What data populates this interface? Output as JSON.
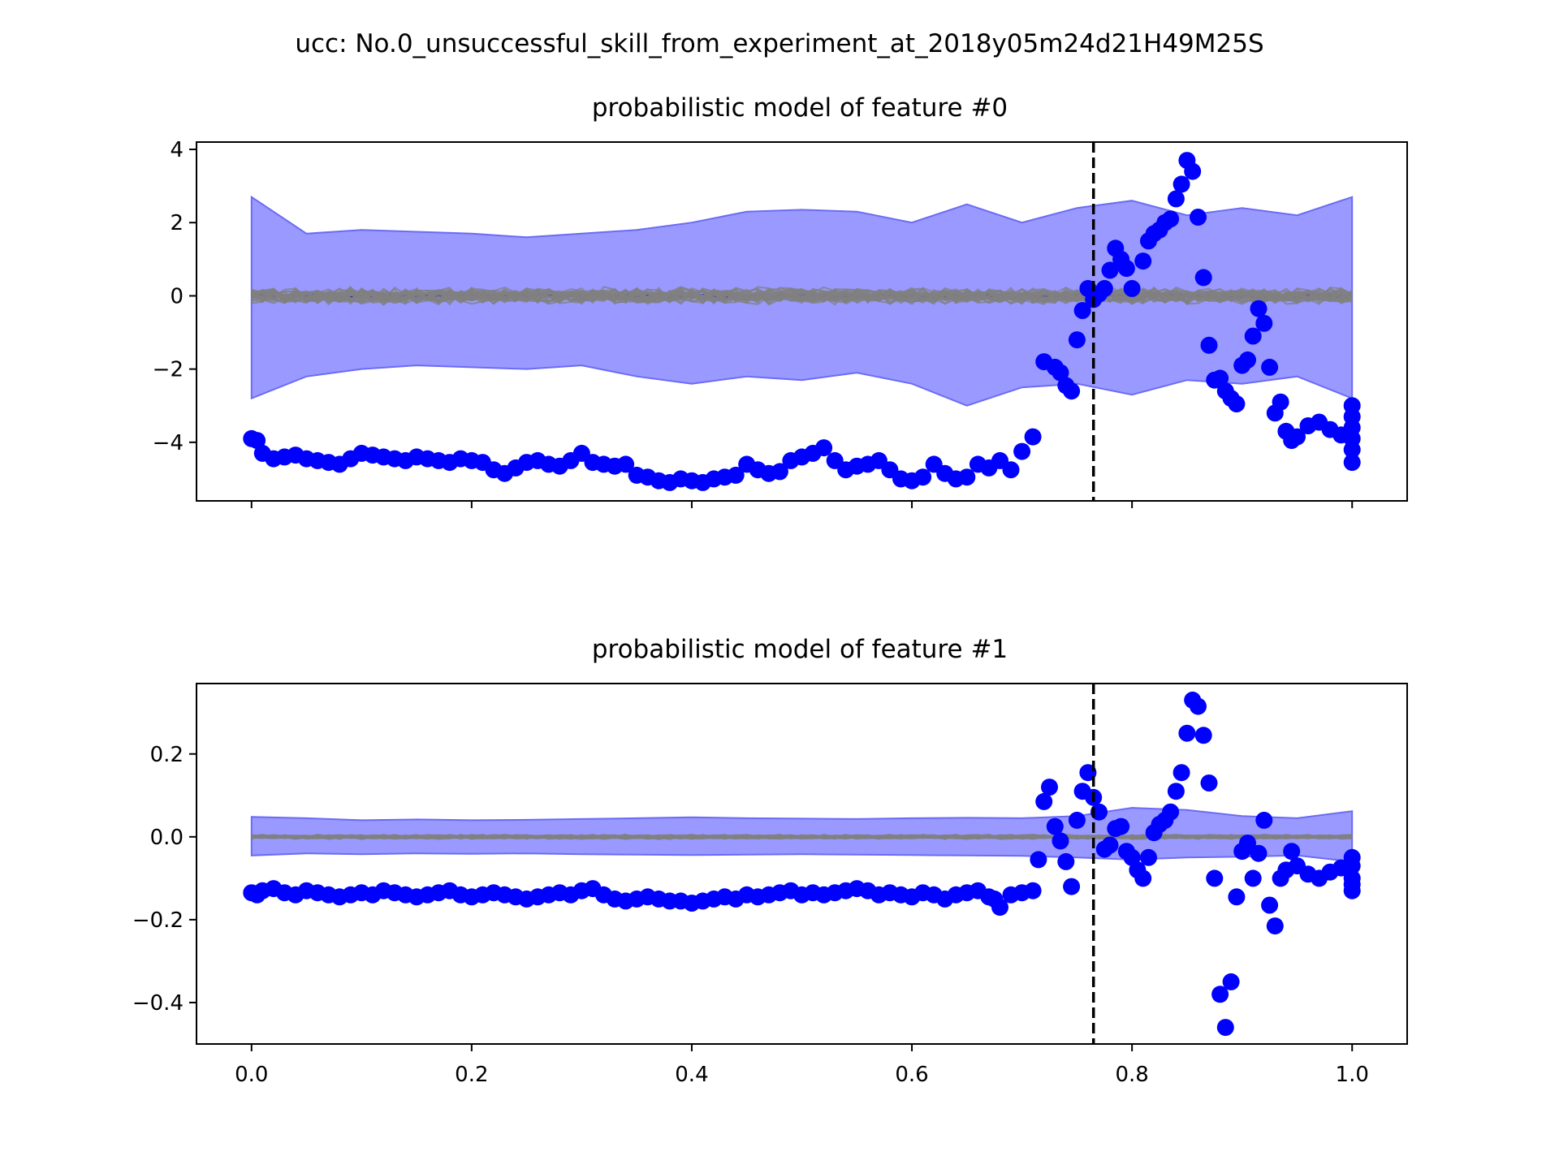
{
  "figure": {
    "suptitle": "ucc: No.0_unsuccessful_skill_from_experiment_at_2018y05m24d21H49M25S",
    "colors": {
      "observed": "#0000ff",
      "band": "#9999ff",
      "band_edge": "#6b6bf5",
      "samples": "#808080",
      "vline": "#000000"
    }
  },
  "chart_data": [
    {
      "type": "scatter",
      "title": "probabilistic model of feature #0",
      "xlabel": "",
      "ylabel": "",
      "xlim": [
        -0.05,
        1.05
      ],
      "ylim": [
        -5.6,
        4.2
      ],
      "xticks": [
        0.0,
        0.2,
        0.4,
        0.6,
        0.8,
        1.0
      ],
      "xtick_labels": [
        "",
        "",
        "",
        "",
        "",
        ""
      ],
      "yticks": [
        -4,
        -2,
        0,
        2,
        4
      ],
      "ytick_labels": [
        "−4",
        "−2",
        "0",
        "2",
        "4"
      ],
      "vline_x": 0.765,
      "band": {
        "x": [
          0.0,
          0.05,
          0.1,
          0.15,
          0.2,
          0.25,
          0.3,
          0.35,
          0.4,
          0.45,
          0.5,
          0.55,
          0.6,
          0.65,
          0.7,
          0.75,
          0.8,
          0.85,
          0.9,
          0.95,
          1.0
        ],
        "upper": [
          2.7,
          1.7,
          1.8,
          1.75,
          1.7,
          1.6,
          1.7,
          1.8,
          2.0,
          2.3,
          2.35,
          2.3,
          2.0,
          2.5,
          2.0,
          2.4,
          2.6,
          2.2,
          2.4,
          2.2,
          2.7
        ],
        "lower": [
          -2.8,
          -2.2,
          -2.0,
          -1.9,
          -1.95,
          -2.0,
          -1.9,
          -2.2,
          -2.4,
          -2.2,
          -2.3,
          -2.1,
          -2.4,
          -3.0,
          -2.5,
          -2.4,
          -2.7,
          -2.3,
          -2.4,
          -2.2,
          -2.8
        ]
      },
      "observed": {
        "x": [
          0.0,
          0.005,
          0.01,
          0.02,
          0.03,
          0.04,
          0.05,
          0.06,
          0.07,
          0.08,
          0.09,
          0.1,
          0.11,
          0.12,
          0.13,
          0.14,
          0.15,
          0.16,
          0.17,
          0.18,
          0.19,
          0.2,
          0.21,
          0.22,
          0.23,
          0.24,
          0.25,
          0.26,
          0.27,
          0.28,
          0.29,
          0.3,
          0.31,
          0.32,
          0.33,
          0.34,
          0.35,
          0.36,
          0.37,
          0.38,
          0.39,
          0.4,
          0.41,
          0.42,
          0.43,
          0.44,
          0.45,
          0.46,
          0.47,
          0.48,
          0.49,
          0.5,
          0.51,
          0.52,
          0.53,
          0.54,
          0.55,
          0.56,
          0.57,
          0.58,
          0.59,
          0.6,
          0.61,
          0.62,
          0.63,
          0.64,
          0.65,
          0.66,
          0.67,
          0.68,
          0.69,
          0.7,
          0.71,
          0.72,
          0.73,
          0.735,
          0.74,
          0.745,
          0.75,
          0.755,
          0.76,
          0.765,
          0.77,
          0.775,
          0.78,
          0.785,
          0.79,
          0.795,
          0.8,
          0.81,
          0.815,
          0.82,
          0.825,
          0.83,
          0.835,
          0.84,
          0.845,
          0.85,
          0.855,
          0.86,
          0.865,
          0.87,
          0.875,
          0.88,
          0.885,
          0.89,
          0.895,
          0.9,
          0.905,
          0.91,
          0.915,
          0.92,
          0.925,
          0.93,
          0.935,
          0.94,
          0.945,
          0.95,
          0.96,
          0.97,
          0.98,
          0.99,
          1.0,
          1.0,
          1.0,
          1.0,
          1.0,
          1.0
        ],
        "y": [
          -3.9,
          -3.95,
          -4.3,
          -4.45,
          -4.4,
          -4.35,
          -4.45,
          -4.5,
          -4.55,
          -4.6,
          -4.45,
          -4.3,
          -4.35,
          -4.4,
          -4.45,
          -4.5,
          -4.4,
          -4.45,
          -4.5,
          -4.55,
          -4.45,
          -4.5,
          -4.55,
          -4.75,
          -4.85,
          -4.7,
          -4.55,
          -4.5,
          -4.6,
          -4.65,
          -4.5,
          -4.3,
          -4.55,
          -4.6,
          -4.65,
          -4.6,
          -4.9,
          -4.95,
          -5.05,
          -5.1,
          -5.0,
          -5.05,
          -5.1,
          -5.0,
          -4.95,
          -4.9,
          -4.6,
          -4.75,
          -4.85,
          -4.8,
          -4.5,
          -4.4,
          -4.3,
          -4.15,
          -4.5,
          -4.75,
          -4.65,
          -4.6,
          -4.5,
          -4.75,
          -5.0,
          -5.05,
          -4.95,
          -4.6,
          -4.85,
          -5.0,
          -4.95,
          -4.6,
          -4.7,
          -4.5,
          -4.75,
          -4.25,
          -3.85,
          -1.8,
          -1.95,
          -2.1,
          -2.45,
          -2.6,
          -1.2,
          -0.4,
          0.2,
          -0.1,
          0.05,
          0.2,
          0.7,
          1.3,
          1.0,
          0.75,
          0.2,
          0.95,
          1.5,
          1.7,
          1.8,
          2.0,
          2.1,
          2.65,
          3.05,
          3.7,
          3.4,
          2.15,
          0.5,
          -1.35,
          -2.3,
          -2.25,
          -2.6,
          -2.8,
          -2.95,
          -1.9,
          -1.75,
          -1.1,
          -0.35,
          -0.75,
          -1.95,
          -3.2,
          -2.9,
          -3.7,
          -3.95,
          -3.85,
          -3.55,
          -3.45,
          -3.65,
          -3.8,
          -3.0,
          -3.3,
          -3.6,
          -3.9,
          -4.2,
          -4.55
        ]
      },
      "samples": {
        "n": 30,
        "mean": 0.0,
        "spread": 0.5
      }
    },
    {
      "type": "scatter",
      "title": "probabilistic model of feature #1",
      "xlabel": "",
      "ylabel": "",
      "xlim": [
        -0.05,
        1.05
      ],
      "ylim": [
        -0.5,
        0.37
      ],
      "xticks": [
        0.0,
        0.2,
        0.4,
        0.6,
        0.8,
        1.0
      ],
      "xtick_labels": [
        "0.0",
        "0.2",
        "0.4",
        "0.6",
        "0.8",
        "1.0"
      ],
      "yticks": [
        -0.4,
        -0.2,
        0.0,
        0.2
      ],
      "ytick_labels": [
        "−0.4",
        "−0.2",
        "0.0",
        "0.2"
      ],
      "vline_x": 0.765,
      "band": {
        "x": [
          0.0,
          0.05,
          0.1,
          0.15,
          0.2,
          0.25,
          0.3,
          0.35,
          0.4,
          0.45,
          0.5,
          0.55,
          0.6,
          0.65,
          0.7,
          0.75,
          0.8,
          0.85,
          0.9,
          0.95,
          1.0
        ],
        "upper": [
          0.048,
          0.045,
          0.04,
          0.042,
          0.04,
          0.041,
          0.043,
          0.045,
          0.047,
          0.045,
          0.044,
          0.043,
          0.045,
          0.046,
          0.045,
          0.05,
          0.07,
          0.065,
          0.05,
          0.045,
          0.062
        ],
        "lower": [
          -0.045,
          -0.04,
          -0.042,
          -0.04,
          -0.041,
          -0.04,
          -0.042,
          -0.043,
          -0.044,
          -0.043,
          -0.042,
          -0.043,
          -0.044,
          -0.045,
          -0.046,
          -0.05,
          -0.055,
          -0.05,
          -0.048,
          -0.045,
          -0.06
        ]
      },
      "observed": {
        "x": [
          0.0,
          0.005,
          0.01,
          0.02,
          0.03,
          0.04,
          0.05,
          0.06,
          0.07,
          0.08,
          0.09,
          0.1,
          0.11,
          0.12,
          0.13,
          0.14,
          0.15,
          0.16,
          0.17,
          0.18,
          0.19,
          0.2,
          0.21,
          0.22,
          0.23,
          0.24,
          0.25,
          0.26,
          0.27,
          0.28,
          0.29,
          0.3,
          0.31,
          0.32,
          0.33,
          0.34,
          0.35,
          0.36,
          0.37,
          0.38,
          0.39,
          0.4,
          0.41,
          0.42,
          0.43,
          0.44,
          0.45,
          0.46,
          0.47,
          0.48,
          0.49,
          0.5,
          0.51,
          0.52,
          0.53,
          0.54,
          0.55,
          0.56,
          0.57,
          0.58,
          0.59,
          0.6,
          0.61,
          0.62,
          0.63,
          0.64,
          0.65,
          0.66,
          0.67,
          0.675,
          0.68,
          0.69,
          0.7,
          0.71,
          0.715,
          0.72,
          0.725,
          0.73,
          0.735,
          0.74,
          0.745,
          0.75,
          0.755,
          0.76,
          0.765,
          0.77,
          0.775,
          0.78,
          0.785,
          0.79,
          0.795,
          0.8,
          0.805,
          0.81,
          0.815,
          0.82,
          0.825,
          0.83,
          0.835,
          0.84,
          0.845,
          0.85,
          0.855,
          0.86,
          0.865,
          0.87,
          0.875,
          0.88,
          0.885,
          0.89,
          0.895,
          0.9,
          0.905,
          0.91,
          0.915,
          0.92,
          0.925,
          0.93,
          0.935,
          0.94,
          0.945,
          0.95,
          0.96,
          0.97,
          0.98,
          0.99,
          1.0,
          1.0,
          1.0,
          1.0,
          1.0
        ],
        "y": [
          -0.135,
          -0.14,
          -0.13,
          -0.125,
          -0.135,
          -0.14,
          -0.13,
          -0.135,
          -0.14,
          -0.145,
          -0.14,
          -0.135,
          -0.14,
          -0.13,
          -0.135,
          -0.14,
          -0.145,
          -0.14,
          -0.135,
          -0.13,
          -0.14,
          -0.145,
          -0.14,
          -0.135,
          -0.14,
          -0.145,
          -0.15,
          -0.145,
          -0.14,
          -0.135,
          -0.14,
          -0.13,
          -0.125,
          -0.14,
          -0.15,
          -0.155,
          -0.15,
          -0.145,
          -0.15,
          -0.155,
          -0.155,
          -0.16,
          -0.155,
          -0.15,
          -0.145,
          -0.15,
          -0.14,
          -0.145,
          -0.14,
          -0.135,
          -0.13,
          -0.14,
          -0.135,
          -0.14,
          -0.135,
          -0.13,
          -0.125,
          -0.13,
          -0.14,
          -0.135,
          -0.14,
          -0.145,
          -0.135,
          -0.14,
          -0.15,
          -0.14,
          -0.135,
          -0.13,
          -0.145,
          -0.15,
          -0.17,
          -0.14,
          -0.135,
          -0.13,
          -0.055,
          0.085,
          0.12,
          0.025,
          -0.01,
          -0.06,
          -0.12,
          0.04,
          0.11,
          0.155,
          0.095,
          0.06,
          -0.03,
          -0.02,
          0.02,
          0.025,
          -0.035,
          -0.05,
          -0.08,
          -0.1,
          -0.05,
          0.01,
          0.03,
          0.04,
          0.06,
          0.11,
          0.155,
          0.25,
          0.33,
          0.315,
          0.245,
          0.13,
          -0.1,
          -0.38,
          -0.46,
          -0.35,
          -0.145,
          -0.035,
          -0.015,
          -0.1,
          -0.04,
          0.04,
          -0.165,
          -0.215,
          -0.1,
          -0.08,
          -0.035,
          -0.07,
          -0.09,
          -0.1,
          -0.085,
          -0.075,
          -0.05,
          -0.07,
          -0.1,
          -0.115,
          -0.13
        ]
      },
      "samples": {
        "n": 30,
        "mean": 0.0,
        "spread": 0.012
      }
    }
  ]
}
